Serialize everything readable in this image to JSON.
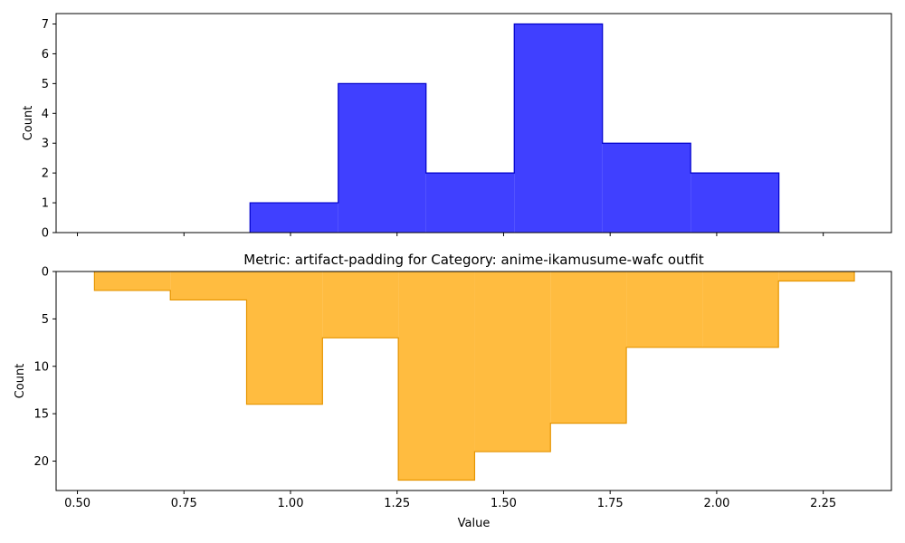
{
  "chart_data": [
    {
      "type": "bar",
      "title": "",
      "xlabel": "",
      "ylabel": "Count",
      "color": "#0000ff",
      "edge_color": "#0000cc",
      "bin_edges": [
        0.905,
        1.112,
        1.318,
        1.525,
        1.732,
        1.939,
        2.146
      ],
      "counts": [
        1,
        5,
        2,
        7,
        3,
        2
      ],
      "xlim": [
        0.45,
        2.41
      ],
      "ylim": [
        0,
        7.35
      ],
      "yticks": [
        0,
        1,
        2,
        3,
        4,
        5,
        6,
        7
      ],
      "ytick_labels": [
        "0",
        "1",
        "2",
        "3",
        "4",
        "5",
        "6",
        "7"
      ],
      "xticks": [
        0.5,
        0.75,
        1.0,
        1.25,
        1.5,
        1.75,
        2.0,
        2.25
      ],
      "grid": false
    },
    {
      "type": "bar",
      "title": "Metric: artifact-padding for Category: anime-ikamusume-wafc outfit",
      "xlabel": "Value",
      "ylabel": "Count",
      "color": "#ffa500",
      "edge_color": "#e69500",
      "y_inverted": true,
      "bin_edges": [
        0.54,
        0.718,
        0.897,
        1.075,
        1.253,
        1.432,
        1.61,
        1.788,
        1.967,
        2.145,
        2.323
      ],
      "counts": [
        2,
        3,
        14,
        7,
        22,
        19,
        16,
        8,
        8,
        1
      ],
      "xlim": [
        0.45,
        2.41
      ],
      "ylim": [
        0,
        23.1
      ],
      "yticks": [
        0,
        5,
        10,
        15,
        20
      ],
      "ytick_labels": [
        "0",
        "5",
        "10",
        "15",
        "20"
      ],
      "xticks": [
        0.5,
        0.75,
        1.0,
        1.25,
        1.5,
        1.75,
        2.0,
        2.25
      ],
      "xtick_labels": [
        "0.50",
        "0.75",
        "1.00",
        "1.25",
        "1.50",
        "1.75",
        "2.00",
        "2.25"
      ],
      "grid": false
    }
  ]
}
